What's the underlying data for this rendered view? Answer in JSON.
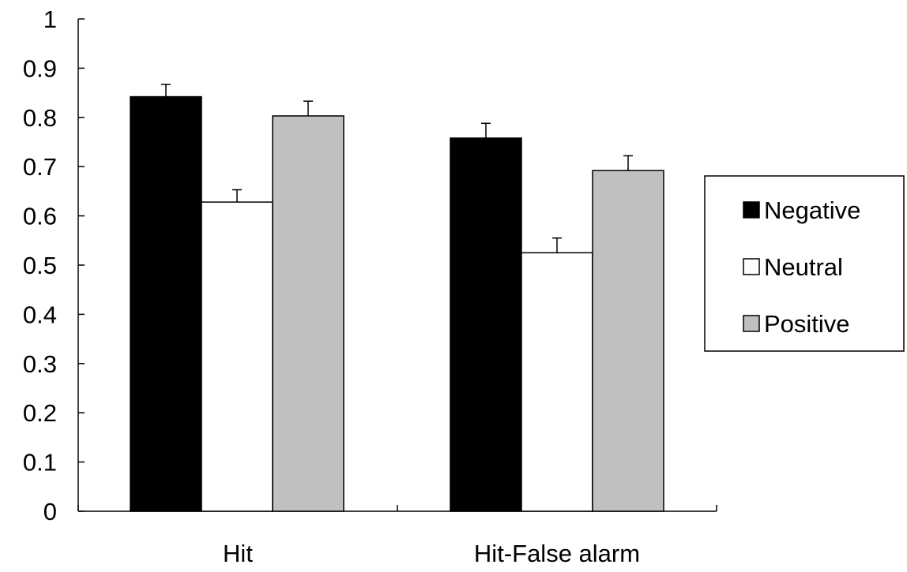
{
  "chart_data": {
    "type": "bar",
    "title": "",
    "xlabel": "",
    "ylabel": "",
    "ylim": [
      0,
      1
    ],
    "yticks": [
      "0",
      "0.1",
      "0.2",
      "0.3",
      "0.4",
      "0.5",
      "0.6",
      "0.7",
      "0.8",
      "0.9",
      "1"
    ],
    "categories": [
      "Hit",
      "Hit-False alarm"
    ],
    "series": [
      {
        "name": "Negative",
        "color": "#000000",
        "values": [
          0.842,
          0.758
        ],
        "errors": [
          0.025,
          0.03
        ]
      },
      {
        "name": "Neutral",
        "color": "#ffffff",
        "values": [
          0.628,
          0.525
        ],
        "errors": [
          0.025,
          0.03
        ]
      },
      {
        "name": "Positive",
        "color": "#c0c0c0",
        "values": [
          0.803,
          0.692
        ],
        "errors": [
          0.03,
          0.03
        ]
      }
    ],
    "legend_position": "right",
    "grid": false
  }
}
